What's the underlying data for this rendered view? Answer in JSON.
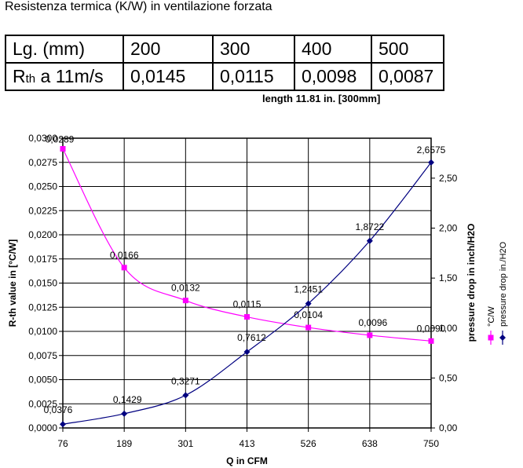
{
  "heading": "Resistenza termica (K/W) in ventilazione forzata",
  "table": {
    "header_label": "Lg. (mm)",
    "lengths": [
      "200",
      "300",
      "400",
      "500"
    ],
    "row_label_main": "R",
    "row_label_sub": "th",
    "row_label_rest": " a 11m/s",
    "values": [
      "0,0145",
      "0,0115",
      "0,0098",
      "0,0087"
    ]
  },
  "chart_data": {
    "type": "line",
    "title": "length 11.81 in. [300mm]",
    "xlabel": "Q in CFM",
    "ylabel_left": "R-th value in [°C/W]",
    "ylabel_right": "pressure drop in inch/H2O",
    "categories": [
      "76",
      "189",
      "301",
      "413",
      "526",
      "638",
      "750"
    ],
    "ylim_left": [
      0,
      0.03
    ],
    "ylim_right": [
      0,
      2.9
    ],
    "yticks_left": [
      "0,0000",
      "0,0025",
      "0,0050",
      "0,0075",
      "0,0100",
      "0,0125",
      "0,0150",
      "0,0175",
      "0,0200",
      "0,0225",
      "0,0250",
      "0,0275",
      "0,0300"
    ],
    "yticks_right": [
      "0,00",
      "0,50",
      "1,00",
      "1,50",
      "2,00",
      "2,50"
    ],
    "yticks_right_values": [
      0,
      0.5,
      1.0,
      1.5,
      2.0,
      2.5
    ],
    "grid": true,
    "series": [
      {
        "name": "°C/W",
        "axis": "left",
        "color": "#ff00ff",
        "marker": "square",
        "values": [
          0.0289,
          0.0166,
          0.0132,
          0.0115,
          0.0104,
          0.0096,
          0.009
        ],
        "labels": [
          "0,0289",
          "0,0166",
          "0,0132",
          "0,0115",
          "0,0104",
          "0,0096",
          "0,0090"
        ]
      },
      {
        "name": "pressure drop in./H2O",
        "axis": "right",
        "color": "#000080",
        "marker": "diamond",
        "values": [
          0.0376,
          0.1429,
          0.3271,
          0.7612,
          1.2451,
          1.8722,
          2.6575
        ],
        "labels": [
          "0,0376",
          "0,1429",
          "0,3271",
          "0,7612",
          "1,2451",
          "1,8722",
          "2,6575"
        ]
      }
    ],
    "legend_position": "right-vertical"
  }
}
